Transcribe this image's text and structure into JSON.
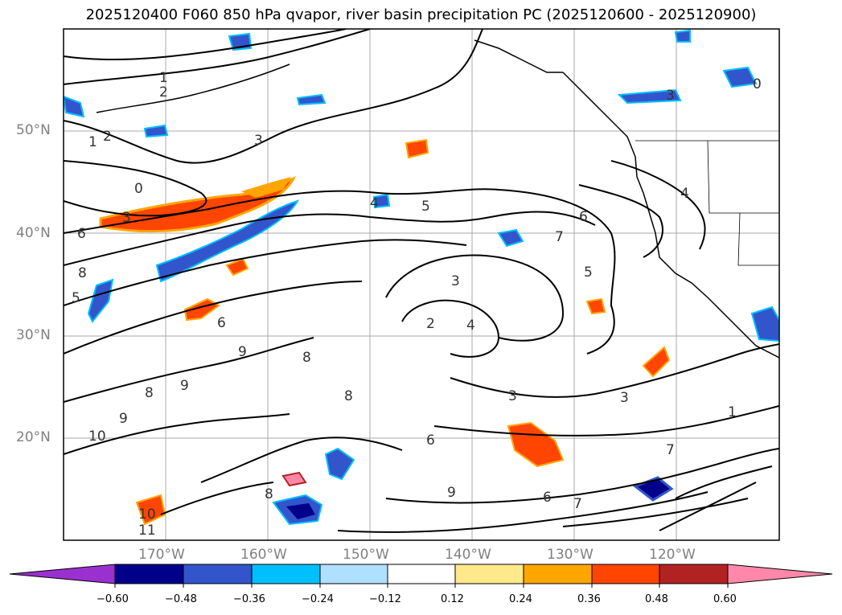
{
  "title": "2025120400 F060 850 hPa qvapor, river basin precipitation PC (2025120600 - 2025120900)",
  "map": {
    "lat_labels": [
      "50°N",
      "40°N",
      "30°N",
      "20°N"
    ],
    "lon_labels": [
      "170°W",
      "160°W",
      "150°W",
      "140°W",
      "130°W",
      "120°W"
    ],
    "contour_labels": [
      "1",
      "2",
      "1",
      "2",
      "0",
      "3",
      "3",
      "4",
      "5",
      "6",
      "7",
      "5",
      "3",
      "2",
      "4",
      "3",
      "3",
      "6",
      "8",
      "9",
      "10",
      "8",
      "9",
      "11",
      "10",
      "7",
      "1",
      "0",
      "3",
      "4",
      "6",
      "8",
      "7",
      "6",
      "9",
      "8",
      "6",
      "5",
      "8",
      "9"
    ]
  },
  "colorbar": {
    "colors": [
      "#9b30d0",
      "#00008b",
      "#3355cc",
      "#00bfff",
      "#b0e0ff",
      "#ffffff",
      "#ffe98a",
      "#ffa500",
      "#ff4500",
      "#b22222",
      "#ff88aa"
    ],
    "ticks": [
      "−0.60",
      "−0.48",
      "−0.36",
      "−0.24",
      "−0.12",
      "0.12",
      "0.24",
      "0.36",
      "0.48",
      "0.60"
    ]
  }
}
